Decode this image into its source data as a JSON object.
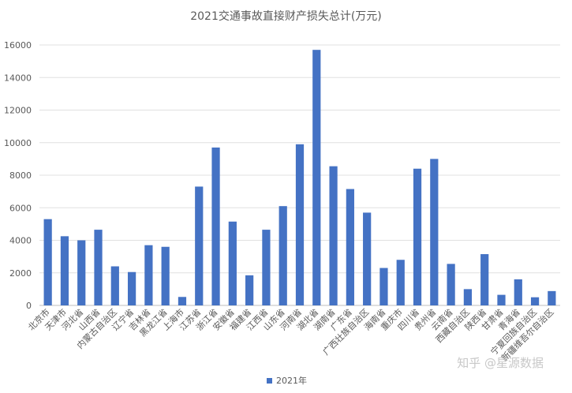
{
  "chart_data": {
    "type": "bar",
    "title": "2021交通事故直接财产损失总计(万元)",
    "xlabel": "",
    "ylabel": "",
    "ylim": [
      0,
      16000
    ],
    "yticks": [
      0,
      2000,
      4000,
      6000,
      8000,
      10000,
      12000,
      14000,
      16000
    ],
    "grid": true,
    "legend_position": "bottom",
    "categories": [
      "北京市",
      "天津市",
      "河北省",
      "山西省",
      "内蒙古自治区",
      "辽宁省",
      "吉林省",
      "黑龙江省",
      "上海市",
      "江苏省",
      "浙江省",
      "安徽省",
      "福建省",
      "江西省",
      "山东省",
      "河南省",
      "湖北省",
      "湖南省",
      "广东省",
      "广西壮族自治区",
      "海南省",
      "重庆市",
      "四川省",
      "贵州省",
      "云南省",
      "西藏自治区",
      "陕西省",
      "甘肃省",
      "青海省",
      "宁夏回族自治区",
      "新疆维吾尔自治区"
    ],
    "series": [
      {
        "name": "2021年",
        "color": "#4472c4",
        "values": [
          5300,
          4250,
          4000,
          4650,
          2400,
          2050,
          3700,
          3600,
          520,
          7300,
          9700,
          5150,
          1850,
          4650,
          6100,
          9900,
          15700,
          8550,
          7150,
          5700,
          2300,
          2800,
          8400,
          9000,
          2550,
          1000,
          3150,
          650,
          1600,
          500,
          880
        ]
      }
    ]
  },
  "watermark": "知乎 @星源数据"
}
